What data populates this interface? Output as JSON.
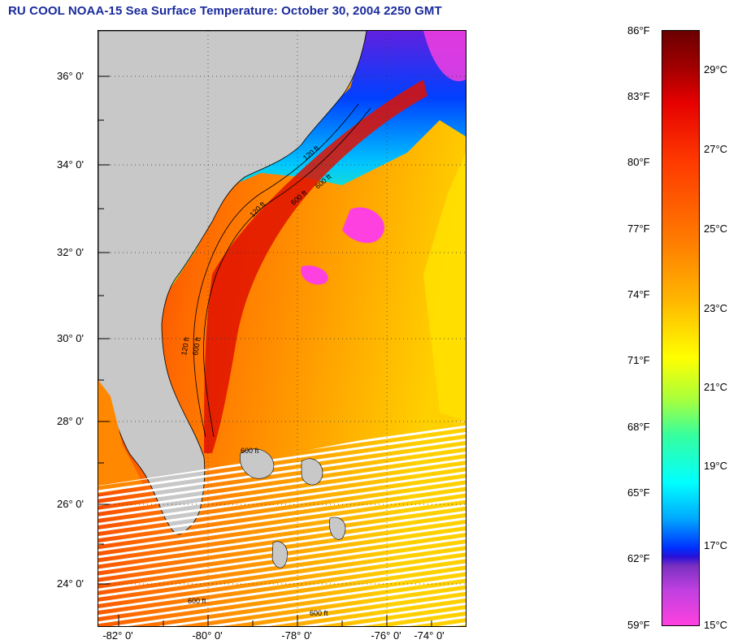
{
  "title": "RU COOL  NOAA-15  Sea Surface Temperature:  October 30, 2004 2250 GMT",
  "map": {
    "lat_labels": [
      "36° 0'",
      "34° 0'",
      "32° 0'",
      "30° 0'",
      "28° 0'",
      "26° 0'",
      "24° 0'"
    ],
    "lon_labels": [
      "-82° 0'",
      "-80° 0'",
      "-78° 0'",
      "-76° 0'",
      "-74° 0'"
    ],
    "land_color": "#c8c8c8",
    "ocean_color": "#ff9a1e",
    "cloud_color": "#ff40e0",
    "gap_color": "#ffffff",
    "contour_labels": [
      "120 ft",
      "600 ft",
      "120 ft",
      "600 ft",
      "120 ft",
      "600 ft",
      "600 ft",
      "600 ft",
      "600 ft"
    ]
  },
  "colorbar": {
    "fahrenheit": [
      "86°F",
      "83°F",
      "80°F",
      "77°F",
      "74°F",
      "71°F",
      "68°F",
      "65°F",
      "62°F",
      "59°F"
    ],
    "celsius": [
      "29°C",
      "27°C",
      "25°C",
      "23°C",
      "21°C",
      "19°C",
      "17°C",
      "15°C"
    ],
    "range_f": [
      59,
      86
    ],
    "range_c": [
      15,
      30
    ]
  }
}
